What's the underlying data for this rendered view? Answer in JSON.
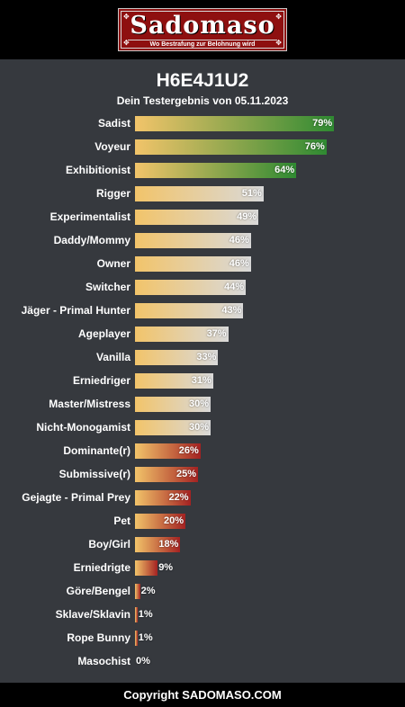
{
  "logo": {
    "name": "Sadomaso",
    "tagline": "Wo Bestrafung zur Belohnung wird"
  },
  "title": "H6E4J1U2",
  "subtitle": "Dein Testergebnis von 05.11.2023",
  "footer": "Copyright SADOMASO.COM",
  "colors": {
    "gold": "#f2c46a",
    "green": "#2f8a32",
    "silver": "#d9d9d9",
    "red": "#a42222",
    "background": "#36393e"
  },
  "chart_data": {
    "type": "bar",
    "orientation": "horizontal",
    "xlim": [
      0,
      100
    ],
    "categories": [
      "Sadist",
      "Voyeur",
      "Exhibitionist",
      "Rigger",
      "Experimentalist",
      "Daddy/Mommy",
      "Owner",
      "Switcher",
      "Jäger - Primal Hunter",
      "Ageplayer",
      "Vanilla",
      "Erniedriger",
      "Master/Mistress",
      "Nicht-Monogamist",
      "Dominante(r)",
      "Submissive(r)",
      "Gejagte - Primal Prey",
      "Pet",
      "Boy/Girl",
      "Erniedrigte",
      "Göre/Bengel",
      "Sklave/Sklavin",
      "Rope Bunny",
      "Masochist"
    ],
    "values": [
      79,
      76,
      64,
      51,
      49,
      46,
      46,
      44,
      43,
      37,
      33,
      31,
      30,
      30,
      26,
      25,
      22,
      20,
      18,
      9,
      2,
      1,
      1,
      0
    ],
    "value_labels": [
      "79%",
      "76%",
      "64%",
      "51%",
      "49%",
      "46%",
      "46%",
      "44%",
      "43%",
      "37%",
      "33%",
      "31%",
      "30%",
      "30%",
      "26%",
      "25%",
      "22%",
      "20%",
      "18%",
      "9%",
      "2%",
      "1%",
      "1%",
      "0%"
    ]
  }
}
